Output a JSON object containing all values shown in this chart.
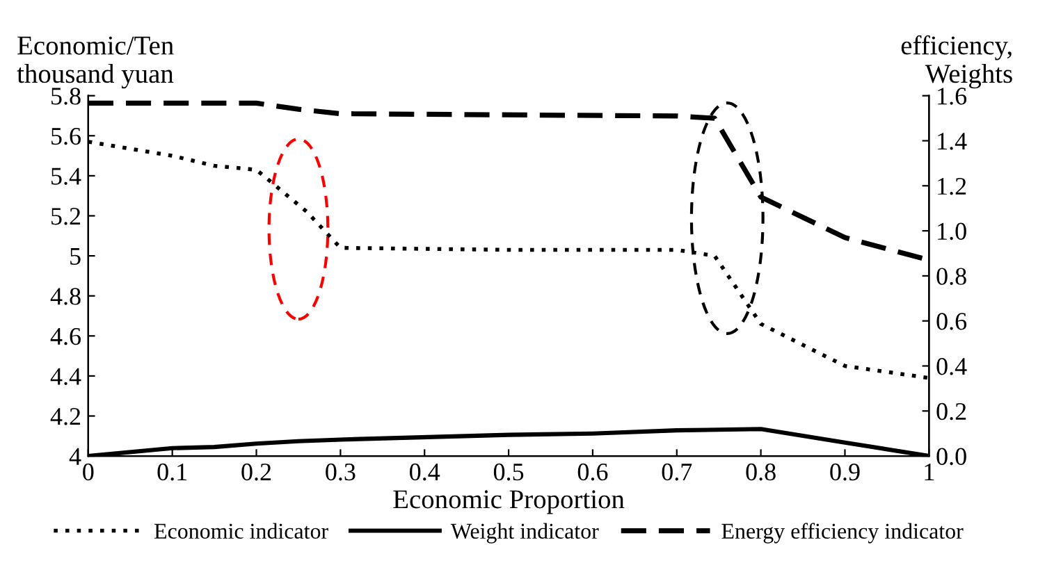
{
  "chart_data": {
    "type": "line",
    "xlabel": "Economic Proportion",
    "ylabel": "Economic/Ten\nthousand yuan",
    "y2label": "efficiency,\nWeights",
    "xlim": [
      0,
      1
    ],
    "xticks": [
      0,
      0.1,
      0.2,
      0.3,
      0.4,
      0.5,
      0.6,
      0.7,
      0.8,
      0.9,
      1
    ],
    "ylim": [
      4,
      5.8
    ],
    "yticks": [
      4,
      4.2,
      4.4,
      4.6,
      4.8,
      5,
      5.2,
      5.4,
      5.6,
      5.8
    ],
    "y2lim": [
      0,
      1.6
    ],
    "y2ticks": [
      {
        "value": 0,
        "label": "0.0"
      },
      0.2,
      0.4,
      0.6,
      0.8,
      {
        "value": 1,
        "label": "1.0"
      },
      1.2,
      1.4,
      1.6
    ],
    "legend": "bottom",
    "grid": false,
    "series": [
      {
        "name": "Economic indicator",
        "color": "#000000",
        "line_style": "dotted",
        "x": [
          0,
          0.1,
          0.15,
          0.2,
          0.26,
          0.3,
          0.5,
          0.7,
          0.745,
          0.8,
          0.9,
          1
        ],
        "values": [
          5.57,
          5.5,
          5.45,
          5.43,
          5.22,
          5.04,
          5.03,
          5.03,
          5.0,
          4.66,
          4.45,
          4.39
        ]
      },
      {
        "name": "Weight indicator",
        "color": "#000000",
        "line_style": "solid",
        "axis": "y2",
        "x": [
          0,
          0.1,
          0.15,
          0.2,
          0.25,
          0.3,
          0.5,
          0.6,
          0.7,
          0.8,
          0.9,
          1
        ],
        "values": [
          0,
          0.035,
          0.04,
          0.055,
          0.066,
          0.073,
          0.094,
          0.1,
          0.114,
          0.12,
          0.06,
          0
        ]
      },
      {
        "name": "Energy efficiency indicator",
        "color": "#000000",
        "line_style": "dashed",
        "axis": "y2",
        "x": [
          0,
          0.2,
          0.25,
          0.3,
          0.7,
          0.745,
          0.8,
          0.9,
          1
        ],
        "values": [
          1.567,
          1.567,
          1.54,
          1.52,
          1.51,
          1.5,
          1.15,
          0.97,
          0.87
        ]
      }
    ]
  }
}
